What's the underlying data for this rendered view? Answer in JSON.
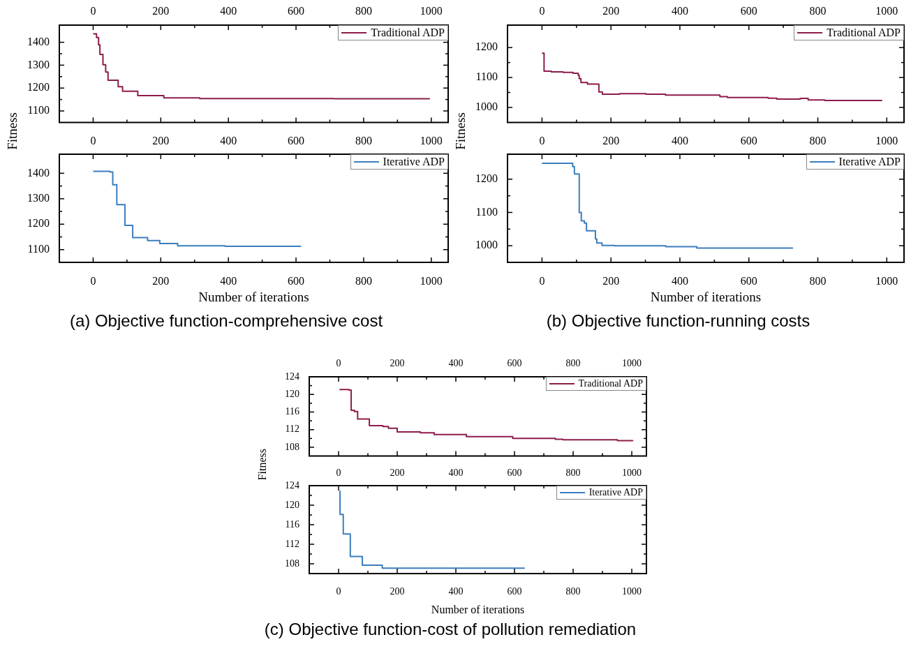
{
  "chart_data": [
    {
      "type": "step",
      "ylabel": "Fitness",
      "x": [
        0,
        10,
        16,
        20,
        29,
        37,
        44,
        74,
        87,
        132,
        209,
        315,
        713,
        996
      ],
      "series": [
        {
          "name": "Traditional ADP",
          "color": "#8c1c4b",
          "values": [
            1437,
            1421,
            1389,
            1347,
            1302,
            1270,
            1234,
            1206,
            1186,
            1167,
            1157,
            1154,
            1153,
            1153
          ]
        }
      ],
      "xlim": [
        -100,
        1050
      ],
      "xticks": [
        0,
        200,
        400,
        600,
        800,
        1000
      ],
      "ylim": [
        1050,
        1475
      ],
      "yticks": [
        1100,
        1200,
        1300,
        1400
      ],
      "legend": "top right",
      "marker": "none"
    },
    {
      "type": "step",
      "xlabel": "Number of iterations",
      "annotations": [
        "(a) Objective function-comprehensive cost"
      ],
      "x": [
        0,
        50,
        58,
        70,
        94,
        117,
        161,
        197,
        250,
        390,
        615
      ],
      "series": [
        {
          "name": "Iterative ADP",
          "color": "#3b7dbd",
          "values": [
            1408,
            1405,
            1355,
            1277,
            1195,
            1147,
            1136,
            1124,
            1115,
            1113,
            1113
          ]
        }
      ],
      "xlim": [
        -100,
        1050
      ],
      "xticks": [
        0,
        200,
        400,
        600,
        800,
        1000
      ],
      "x2lim": [
        -100,
        1050
      ],
      "x2ticks": [
        0,
        200,
        400,
        600,
        800,
        1000
      ],
      "ylim": [
        1050,
        1475
      ],
      "yticks": [
        1100,
        1200,
        1300,
        1400
      ],
      "legend": "top right",
      "marker": "none"
    },
    {
      "type": "step",
      "ylabel": "Fitness",
      "x": [
        0,
        6,
        27,
        61,
        90,
        105,
        108,
        113,
        132,
        165,
        175,
        225,
        301,
        358,
        516,
        538,
        656,
        681,
        749,
        772,
        820,
        985
      ],
      "series": [
        {
          "name": "Traditional ADP",
          "color": "#8c1c4b",
          "values": [
            1181,
            1121,
            1119,
            1117,
            1114,
            1108,
            1096,
            1083,
            1078,
            1052,
            1044,
            1046,
            1044,
            1041,
            1036,
            1033,
            1031,
            1028,
            1030,
            1025,
            1023,
            1021
          ]
        }
      ],
      "xlim": [
        -100,
        1050
      ],
      "xticks": [
        0,
        200,
        400,
        600,
        800,
        1000
      ],
      "ylim": [
        950,
        1275
      ],
      "yticks": [
        1000,
        1100,
        1200
      ],
      "legend": "top right",
      "marker": "none"
    },
    {
      "type": "step",
      "xlabel": "Number of iterations",
      "annotations": [
        "(b) Objective function-running costs"
      ],
      "x": [
        0,
        89,
        94,
        108,
        114,
        123,
        129,
        155,
        159,
        174,
        210,
        359,
        449,
        728
      ],
      "series": [
        {
          "name": "Iterative ADP",
          "color": "#3b7dbd",
          "values": [
            1248,
            1238,
            1216,
            1100,
            1075,
            1068,
            1045,
            1020,
            1008,
            1001,
            1000,
            997,
            993,
            993
          ]
        }
      ],
      "xlim": [
        -100,
        1050
      ],
      "xticks": [
        0,
        200,
        400,
        600,
        800,
        1000
      ],
      "x2lim": [
        -100,
        1050
      ],
      "x2ticks": [
        0,
        200,
        400,
        600,
        800,
        1000
      ],
      "ylim": [
        950,
        1275
      ],
      "yticks": [
        1000,
        1100,
        1200
      ],
      "legend": "top right",
      "marker": "none"
    },
    {
      "type": "step",
      "ylabel": "Fitness",
      "x": [
        3,
        35,
        43,
        54,
        65,
        105,
        151,
        170,
        200,
        279,
        326,
        436,
        594,
        739,
        765,
        951,
        1003
      ],
      "series": [
        {
          "name": "Traditional ADP",
          "color": "#8c1c4b",
          "values": [
            121.1,
            121.0,
            116.4,
            116.1,
            114.4,
            112.9,
            112.7,
            112.3,
            111.5,
            111.3,
            110.9,
            110.4,
            110.0,
            109.8,
            109.7,
            109.5,
            109.4
          ]
        }
      ],
      "xlim": [
        -100,
        1050
      ],
      "xticks": [
        0,
        200,
        400,
        600,
        800,
        1000
      ],
      "ylim": [
        106,
        124
      ],
      "yticks": [
        108,
        112,
        116,
        120,
        124
      ],
      "legend": "top right",
      "marker": "none"
    },
    {
      "type": "step",
      "xlabel": "Number of iterations",
      "annotations": [
        "(c) Objective function-cost of pollution remediation"
      ],
      "x": [
        3,
        5,
        16,
        40,
        81,
        149,
        635
      ],
      "series": [
        {
          "name": "Iterative ADP",
          "color": "#3b7dbd",
          "values": [
            122.9,
            118.1,
            114.1,
            109.5,
            107.7,
            107.1,
            107.1
          ]
        }
      ],
      "xlim": [
        -100,
        1050
      ],
      "xticks": [
        0,
        200,
        400,
        600,
        800,
        1000
      ],
      "x2lim": [
        -100,
        1050
      ],
      "x2ticks": [
        0,
        200,
        400,
        600,
        800,
        1000
      ],
      "ylim": [
        106,
        124
      ],
      "yticks": [
        108,
        112,
        116,
        120,
        124
      ],
      "legend": "top right",
      "marker": "none"
    }
  ]
}
